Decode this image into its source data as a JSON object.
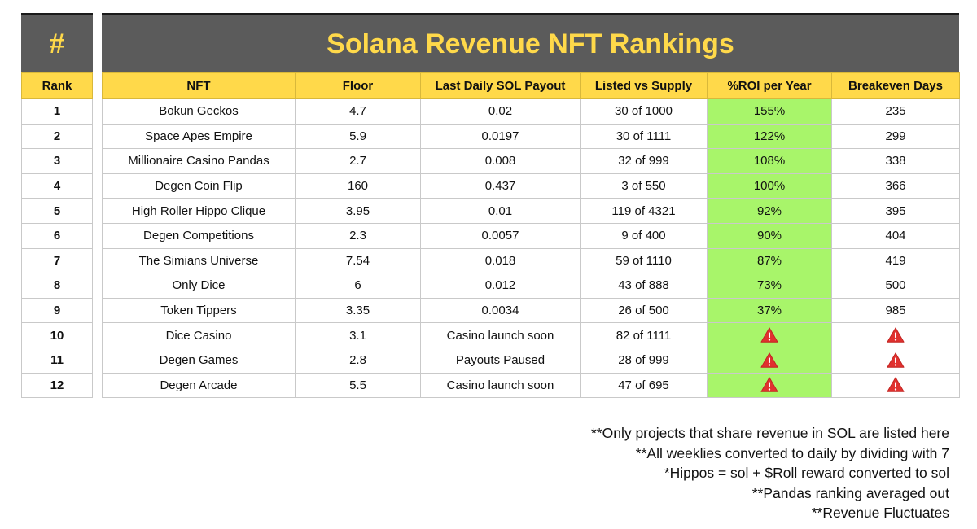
{
  "rank_header": "#",
  "title": "Solana Revenue NFT Rankings",
  "columns": {
    "rank": "Rank",
    "nft": "NFT",
    "floor": "Floor",
    "payout": "Last Daily SOL Payout",
    "listed": "Listed vs Supply",
    "roi": "%ROI per Year",
    "breakeven": "Breakeven Days"
  },
  "rows": [
    {
      "rank": "1",
      "nft": "Bokun Geckos",
      "floor": "4.7",
      "payout": "0.02",
      "listed": "30 of 1000",
      "roi": "155%",
      "breakeven": "235"
    },
    {
      "rank": "2",
      "nft": "Space Apes Empire",
      "floor": "5.9",
      "payout": "0.0197",
      "listed": "30 of 1111",
      "roi": "122%",
      "breakeven": "299"
    },
    {
      "rank": "3",
      "nft": "Millionaire Casino Pandas",
      "floor": "2.7",
      "payout": "0.008",
      "listed": "32 of 999",
      "roi": "108%",
      "breakeven": "338"
    },
    {
      "rank": "4",
      "nft": "Degen Coin Flip",
      "floor": "160",
      "payout": "0.437",
      "listed": "3 of 550",
      "roi": "100%",
      "breakeven": "366"
    },
    {
      "rank": "5",
      "nft": "High Roller Hippo Clique",
      "floor": "3.95",
      "payout": "0.01",
      "listed": "119 of 4321",
      "roi": "92%",
      "breakeven": "395"
    },
    {
      "rank": "6",
      "nft": "Degen Competitions",
      "floor": "2.3",
      "payout": "0.0057",
      "listed": "9 of 400",
      "roi": "90%",
      "breakeven": "404"
    },
    {
      "rank": "7",
      "nft": "The Simians Universe",
      "floor": "7.54",
      "payout": "0.018",
      "listed": "59 of 1110",
      "roi": "87%",
      "breakeven": "419"
    },
    {
      "rank": "8",
      "nft": "Only Dice",
      "floor": "6",
      "payout": "0.012",
      "listed": "43 of 888",
      "roi": "73%",
      "breakeven": "500"
    },
    {
      "rank": "9",
      "nft": "Token Tippers",
      "floor": "3.35",
      "payout": "0.0034",
      "listed": "26 of 500",
      "roi": "37%",
      "breakeven": "985"
    },
    {
      "rank": "10",
      "nft": "Dice Casino",
      "floor": "3.1",
      "payout": "Casino launch soon",
      "listed": "82 of 1111",
      "roi": "warning-icon",
      "breakeven": "warning-icon"
    },
    {
      "rank": "11",
      "nft": "Degen Games",
      "floor": "2.8",
      "payout": "Payouts Paused",
      "listed": "28 of  999",
      "roi": "warning-icon",
      "breakeven": "warning-icon"
    },
    {
      "rank": "12",
      "nft": "Degen Arcade",
      "floor": "5.5",
      "payout": "Casino launch soon",
      "listed": "47 of 695",
      "roi": "warning-icon",
      "breakeven": "warning-icon"
    }
  ],
  "notes": [
    "**Only projects that share revenue in SOL are listed here",
    "**All weeklies converted to daily by dividing with 7",
    "*Hippos = sol + $Roll reward converted to sol",
    "**Pandas ranking averaged out",
    "**Revenue Fluctuates"
  ],
  "colors": {
    "header_dark": "#5b5b5b",
    "accent_yellow": "#ffd94a",
    "roi_green": "#a8f56a",
    "warning_red": "#e0312f"
  }
}
